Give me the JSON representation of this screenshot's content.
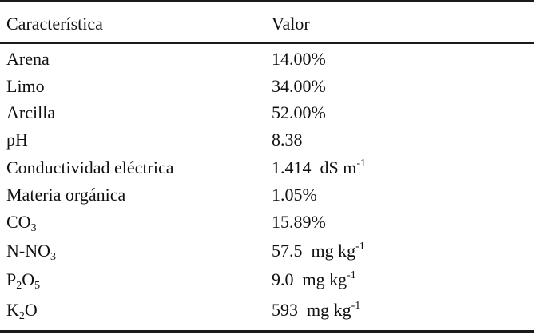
{
  "table": {
    "headers": {
      "characteristic": "Característica",
      "value": "Valor"
    },
    "rows": [
      {
        "name": "Arena",
        "name_sub": "",
        "name_mid": "",
        "name_sub2": "",
        "value": "14.00%",
        "value_sup": ""
      },
      {
        "name": "Limo",
        "name_sub": "",
        "name_mid": "",
        "name_sub2": "",
        "value": "34.00%",
        "value_sup": ""
      },
      {
        "name": "Arcilla",
        "name_sub": "",
        "name_mid": "",
        "name_sub2": "",
        "value": "52.00%",
        "value_sup": ""
      },
      {
        "name": "pH",
        "name_sub": "",
        "name_mid": "",
        "name_sub2": "",
        "value": "8.38",
        "value_sup": ""
      },
      {
        "name": "Conductividad eléctrica",
        "name_sub": "",
        "name_mid": "",
        "name_sub2": "",
        "value": "1.414  dS m",
        "value_sup": "-1"
      },
      {
        "name": "Materia orgánica",
        "name_sub": "",
        "name_mid": "",
        "name_sub2": "",
        "value": "1.05%",
        "value_sup": ""
      },
      {
        "name": "CO",
        "name_sub": "3",
        "name_mid": "",
        "name_sub2": "",
        "value": "15.89%",
        "value_sup": ""
      },
      {
        "name": "N-NO",
        "name_sub": "3",
        "name_mid": "",
        "name_sub2": "",
        "value": "57.5  mg kg",
        "value_sup": "-1"
      },
      {
        "name": "P",
        "name_sub": "2",
        "name_mid": "O",
        "name_sub2": "5",
        "value": "9.0  mg kg",
        "value_sup": "-1"
      },
      {
        "name": "K",
        "name_sub": "2",
        "name_mid": "O",
        "name_sub2": "",
        "value": "593  mg kg",
        "value_sup": "-1"
      }
    ]
  }
}
